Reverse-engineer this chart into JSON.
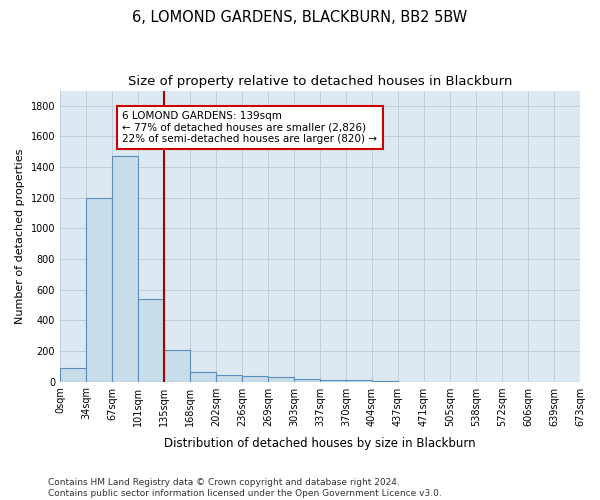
{
  "title": "6, LOMOND GARDENS, BLACKBURN, BB2 5BW",
  "subtitle": "Size of property relative to detached houses in Blackburn",
  "xlabel": "Distribution of detached houses by size in Blackburn",
  "ylabel": "Number of detached properties",
  "bar_values": [
    90,
    1200,
    1470,
    540,
    205,
    65,
    45,
    35,
    28,
    15,
    10,
    8,
    5,
    0,
    0,
    0,
    0,
    0,
    0,
    0
  ],
  "bar_labels": [
    "0sqm",
    "34sqm",
    "67sqm",
    "101sqm",
    "135sqm",
    "168sqm",
    "202sqm",
    "236sqm",
    "269sqm",
    "303sqm",
    "337sqm",
    "370sqm",
    "404sqm",
    "437sqm",
    "471sqm",
    "505sqm",
    "538sqm",
    "572sqm",
    "606sqm",
    "639sqm",
    "673sqm"
  ],
  "bar_color": "#c9dcea",
  "bar_edge_color": "#5b8db8",
  "bar_edge_width": 0.8,
  "red_line_x": 4.0,
  "red_line_color": "#aa0000",
  "annotation_line1": "6 LOMOND GARDENS: 139sqm",
  "annotation_line2": "← 77% of detached houses are smaller (2,826)",
  "annotation_line3": "22% of semi-detached houses are larger (820) →",
  "annotation_box_color": "#cc0000",
  "annotation_box_facecolor": "white",
  "ylim": [
    0,
    1900
  ],
  "yticks": [
    0,
    200,
    400,
    600,
    800,
    1000,
    1200,
    1400,
    1600,
    1800
  ],
  "grid_color": "#c0cdd8",
  "background_color": "#dce8f2",
  "footer_text": "Contains HM Land Registry data © Crown copyright and database right 2024.\nContains public sector information licensed under the Open Government Licence v3.0.",
  "title_fontsize": 10.5,
  "subtitle_fontsize": 9.5,
  "xlabel_fontsize": 8.5,
  "ylabel_fontsize": 8,
  "tick_fontsize": 7,
  "footer_fontsize": 6.5,
  "annot_fontsize": 7.5
}
